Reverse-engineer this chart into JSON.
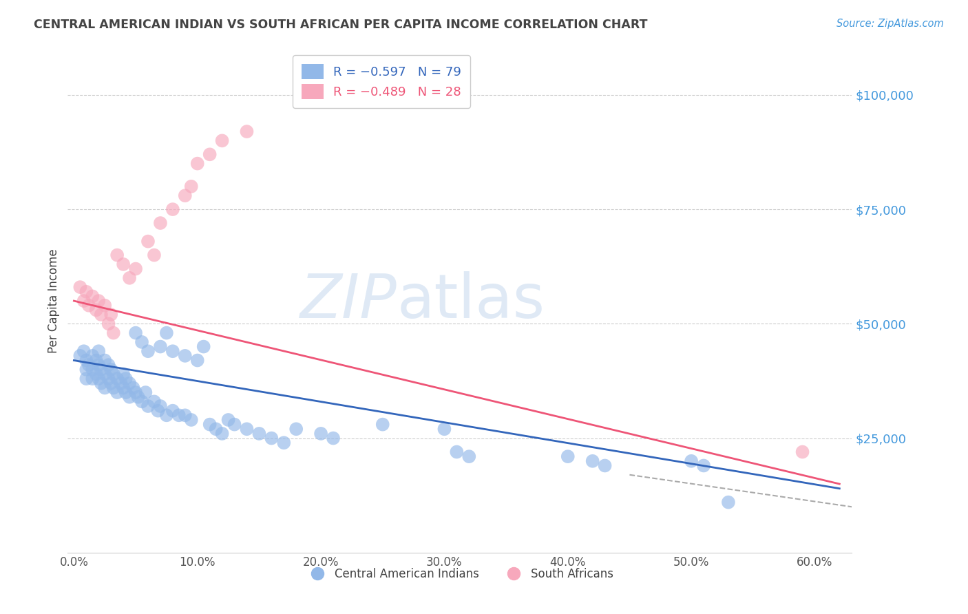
{
  "title": "CENTRAL AMERICAN INDIAN VS SOUTH AFRICAN PER CAPITA INCOME CORRELATION CHART",
  "source": "Source: ZipAtlas.com",
  "ylabel": "Per Capita Income",
  "xlabel_ticks": [
    "0.0%",
    "10.0%",
    "20.0%",
    "30.0%",
    "40.0%",
    "50.0%",
    "60.0%"
  ],
  "xlabel_vals": [
    0.0,
    0.1,
    0.2,
    0.3,
    0.4,
    0.5,
    0.6
  ],
  "ytick_labels": [
    "$25,000",
    "$50,000",
    "$75,000",
    "$100,000"
  ],
  "ytick_vals": [
    25000,
    50000,
    75000,
    100000
  ],
  "ylim": [
    0,
    110000
  ],
  "xlim": [
    -0.005,
    0.63
  ],
  "watermark_zip": "ZIP",
  "watermark_atlas": "atlas",
  "legend_blue_label": "Central American Indians",
  "legend_pink_label": "South Africans",
  "blue_color": "#92b8e8",
  "pink_color": "#f7a8bc",
  "blue_line_color": "#3366bb",
  "pink_line_color": "#ee5577",
  "dashed_line_color": "#aaaaaa",
  "axis_label_color": "#4499dd",
  "grid_color": "#cccccc",
  "title_color": "#444444",
  "blue_x": [
    0.005,
    0.008,
    0.01,
    0.01,
    0.01,
    0.012,
    0.015,
    0.015,
    0.015,
    0.018,
    0.018,
    0.02,
    0.02,
    0.02,
    0.022,
    0.022,
    0.025,
    0.025,
    0.025,
    0.028,
    0.028,
    0.03,
    0.03,
    0.032,
    0.032,
    0.035,
    0.035,
    0.038,
    0.04,
    0.04,
    0.042,
    0.042,
    0.045,
    0.045,
    0.048,
    0.05,
    0.05,
    0.052,
    0.055,
    0.055,
    0.058,
    0.06,
    0.06,
    0.065,
    0.068,
    0.07,
    0.07,
    0.075,
    0.075,
    0.08,
    0.08,
    0.085,
    0.09,
    0.09,
    0.095,
    0.1,
    0.105,
    0.11,
    0.115,
    0.12,
    0.125,
    0.13,
    0.14,
    0.15,
    0.16,
    0.17,
    0.18,
    0.2,
    0.21,
    0.25,
    0.3,
    0.31,
    0.32,
    0.4,
    0.42,
    0.43,
    0.5,
    0.51,
    0.53
  ],
  "blue_y": [
    43000,
    44000,
    42000,
    40000,
    38000,
    41000,
    43000,
    40000,
    38000,
    42000,
    39000,
    44000,
    41000,
    38000,
    40000,
    37000,
    42000,
    39000,
    36000,
    41000,
    38000,
    40000,
    37000,
    39000,
    36000,
    38000,
    35000,
    37000,
    39000,
    36000,
    38000,
    35000,
    37000,
    34000,
    36000,
    48000,
    35000,
    34000,
    46000,
    33000,
    35000,
    44000,
    32000,
    33000,
    31000,
    45000,
    32000,
    48000,
    30000,
    44000,
    31000,
    30000,
    43000,
    30000,
    29000,
    42000,
    45000,
    28000,
    27000,
    26000,
    29000,
    28000,
    27000,
    26000,
    25000,
    24000,
    27000,
    26000,
    25000,
    28000,
    27000,
    22000,
    21000,
    21000,
    20000,
    19000,
    20000,
    19000,
    11000
  ],
  "pink_x": [
    0.005,
    0.008,
    0.01,
    0.012,
    0.015,
    0.018,
    0.02,
    0.022,
    0.025,
    0.028,
    0.03,
    0.032,
    0.035,
    0.04,
    0.045,
    0.05,
    0.06,
    0.065,
    0.07,
    0.08,
    0.09,
    0.095,
    0.1,
    0.11,
    0.12,
    0.14,
    0.59
  ],
  "pink_y": [
    58000,
    55000,
    57000,
    54000,
    56000,
    53000,
    55000,
    52000,
    54000,
    50000,
    52000,
    48000,
    65000,
    63000,
    60000,
    62000,
    68000,
    65000,
    72000,
    75000,
    78000,
    80000,
    85000,
    87000,
    90000,
    92000,
    22000
  ],
  "blue_trend_x": [
    0.0,
    0.62
  ],
  "blue_trend_y": [
    42000,
    14000
  ],
  "pink_trend_x": [
    0.0,
    0.62
  ],
  "pink_trend_y": [
    55000,
    15000
  ],
  "dashed_trend_x": [
    0.45,
    0.63
  ],
  "dashed_trend_y": [
    17000,
    10000
  ]
}
